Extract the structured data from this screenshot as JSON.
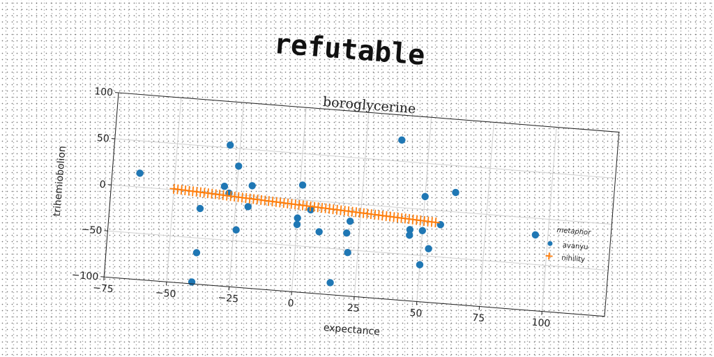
{
  "title": "refutable",
  "chart_data": {
    "type": "scatter",
    "title": "boroglycerine",
    "xlabel": "expectance",
    "ylabel": "trihemiobolion",
    "xlim": [
      -75,
      125
    ],
    "ylim": [
      -100,
      100
    ],
    "xticks": [
      -75,
      -50,
      -25,
      0,
      25,
      50,
      75,
      100
    ],
    "yticks": [
      100,
      50,
      0,
      -50,
      -100
    ],
    "grid": true,
    "legend": {
      "title": "metaphor",
      "placement": "right"
    },
    "series": [
      {
        "name": "avanyu",
        "marker": "circle",
        "color": "#1f77b4",
        "points": [
          [
            -64,
            15
          ],
          [
            -29,
            53
          ],
          [
            -25,
            31
          ],
          [
            -30,
            8
          ],
          [
            -28,
            1
          ],
          [
            -19,
            11
          ],
          [
            -20,
            -12
          ],
          [
            -39,
            -18
          ],
          [
            -24,
            -38
          ],
          [
            -39,
            -66
          ],
          [
            -40,
            -98
          ],
          [
            1,
            16
          ],
          [
            0,
            -20
          ],
          [
            0,
            -27
          ],
          [
            5,
            -10
          ],
          [
            9,
            -33
          ],
          [
            15,
            -87
          ],
          [
            20,
            -32
          ],
          [
            21,
            -19
          ],
          [
            21,
            -53
          ],
          [
            39,
            73
          ],
          [
            45,
            -23
          ],
          [
            45,
            -29
          ],
          [
            50,
            14
          ],
          [
            50,
            -23
          ],
          [
            53,
            -42
          ],
          [
            50,
            -60
          ],
          [
            57,
            -15
          ],
          [
            62,
            21
          ],
          [
            95,
            -18
          ]
        ]
      },
      {
        "name": "nihility",
        "marker": "plus",
        "color": "#ff7f0e",
        "line": true,
        "x_range": [
          -50,
          55
        ],
        "y_range": [
          1,
          -13
        ],
        "count": 70
      }
    ]
  }
}
